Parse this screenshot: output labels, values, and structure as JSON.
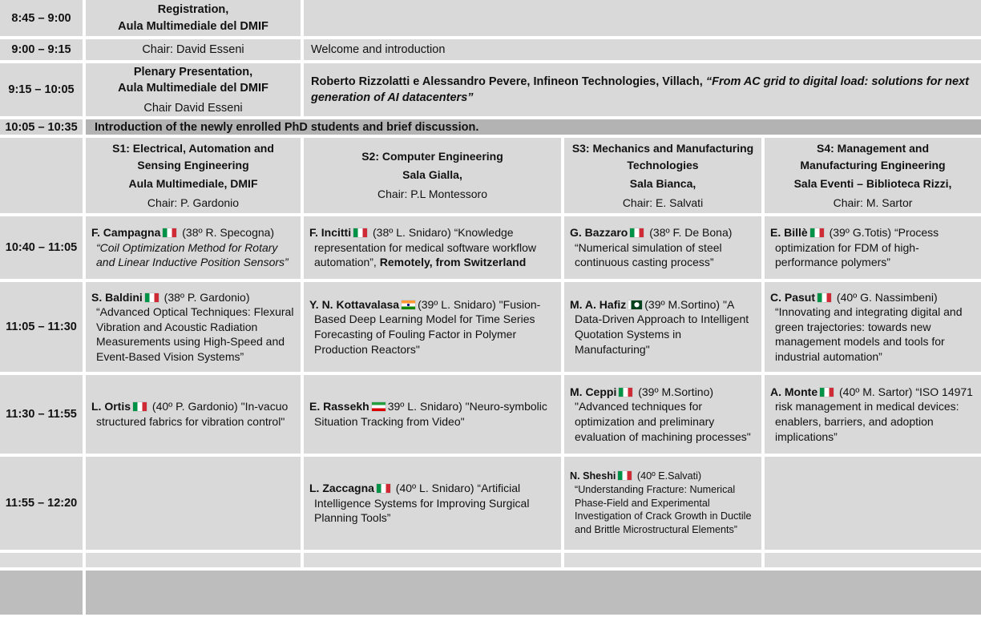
{
  "accent_colors": {
    "cell_gray": "#d9d9d9",
    "intro_gray": "#b3b3b3",
    "footer_gray": "#bdbdbd"
  },
  "top_rows": {
    "r1": {
      "time": "8:45 – 9:00",
      "title_line1": "Registration,",
      "title_line2": "Aula Multimediale del DMIF"
    },
    "r2": {
      "time": "9:00 – 9:15",
      "chair": "Chair: David Esseni",
      "text": "Welcome and introduction"
    },
    "r3": {
      "time": "9:15 – 10:05",
      "title_line1": "Plenary Presentation,",
      "title_line2": "Aula Multimediale del DMIF",
      "chair": "Chair David Esseni",
      "speakers": "Roberto Rizzolatti e Alessandro Pevere, Infineon Technologies, Villach, ",
      "talk_title": "“From AC grid to digital load: solutions for next generation of AI datacenters”"
    },
    "r4": {
      "time": "10:05 – 10:35",
      "text": "Introduction of the newly enrolled PhD students and brief discussion."
    }
  },
  "sessions": [
    {
      "title": "S1:  Electrical, Automation and\nSensing Engineering",
      "venue": "Aula Multimediale, DMIF",
      "chair": "Chair: P. Gardonio"
    },
    {
      "title": "S2: Computer Engineering",
      "venue": "Sala Gialla,",
      "chair": "Chair: P.L Montessoro"
    },
    {
      "title": "S3: Mechanics and Manufacturing\nTechnologies",
      "venue": "Sala Bianca,",
      "chair": "Chair: E. Salvati"
    },
    {
      "title": "S4:  Management and\nManufacturing Engineering",
      "venue": "Sala Eventi – Biblioteca Rizzi,",
      "chair": "Chair: M. Sartor"
    }
  ],
  "talks": [
    {
      "time": "10:40 – 11:05",
      "s1": {
        "speaker": "F. Campagna",
        "flag": "italy",
        "meta": " (38º  R. Specogna) ",
        "title": "“Coil Optimization Method for Rotary and Linear Inductive Position Sensors”"
      },
      "s2": {
        "speaker": "F. Incitti",
        "flag": "italy",
        "meta": " (38º  L. Snidaro) ",
        "title": "“Knowledge representation for medical software workflow automation”, ",
        "after_bold": "Remotely, from Switzerland"
      },
      "s3": {
        "speaker": "G. Bazzaro",
        "flag": "italy",
        "meta": " (38º  F. De Bona) ",
        "title": "“Numerical simulation of steel continuous casting process”"
      },
      "s4": {
        "speaker": "E. Billè",
        "flag": "italy",
        "meta": " (39º  G.Totis) ",
        "title": "“Process optimization for FDM of high-performance polymers”"
      }
    },
    {
      "time": "11:05 – 11:30",
      "s1": {
        "speaker": "S. Baldini",
        "flag": "italy",
        "meta": " (38º P. Gardonio) ",
        "title": "“Advanced Optical Techniques: Flexural Vibration and Acoustic Radiation Measurements using High-Speed and Event-Based Vision Systems”"
      },
      "s2": {
        "speaker": "Y. N. Kottavalasa",
        "flag": "india",
        "meta": "(39º  L. Snidaro) ",
        "title": "\"Fusion-Based Deep Learning Model for Time Series Forecasting of Fouling Factor in Polymer Production Reactors\""
      },
      "s3": {
        "speaker": "M. A. Hafiz",
        "flag": "pakistan",
        "meta": "(39º  M.Sortino) ",
        "title": "\"A Data-Driven Approach to Intelligent Quotation Systems in Manufacturing\""
      },
      "s4": {
        "speaker": "C. Pasut",
        "flag": "italy",
        "meta": " (40º  G. Nassimbeni) ",
        "title": "“Innovating and integrating digital and green trajectories: towards new management models and tools for industrial automation”"
      }
    },
    {
      "time": "11:30 – 11:55",
      "s1": {
        "speaker": "L. Ortis",
        "flag": "italy",
        "meta": " (40º P. Gardonio) ",
        "title": "\"In-vacuo structured fabrics for vibration control\""
      },
      "s2": {
        "speaker": "E. Rassekh",
        "flag": "iran",
        "meta": "39º  L. Snidaro) ",
        "title": "\"Neuro-symbolic Situation Tracking from Video\""
      },
      "s3": {
        "speaker": "M. Ceppi",
        "flag": "italy",
        "meta": " (39º  M.Sortino) ",
        "title": "\"Advanced techniques for optimization and preliminary evaluation of machining processes\""
      },
      "s4": {
        "speaker": "A. Monte",
        "flag": "italy",
        "meta": " (40º  M. Sartor) ",
        "title": "“ISO 14971 risk management in medical devices: enablers, barriers, and adoption implications”"
      }
    },
    {
      "time": "11:55 – 12:20",
      "s2": {
        "speaker": "L. Zaccagna",
        "flag": "italy",
        "meta": " (40º  L. Snidaro) ",
        "title": "“Artificial Intelligence Systems for Improving Surgical Planning Tools”"
      },
      "s3": {
        "speaker": "N. Sheshi",
        "flag": "italy",
        "meta": " (40º  E.Salvati) ",
        "title": "“Understanding Fracture: Numerical Phase-Field and Experimental Investigation of Crack Growth in Ductile and Brittle Microstructural Elements”"
      }
    }
  ]
}
